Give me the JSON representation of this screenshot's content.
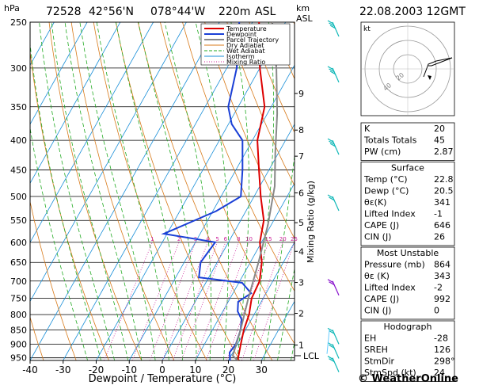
{
  "header": {
    "station": "72528",
    "lat": "42°56'N",
    "lon": "078°44'W",
    "elevation": "220m",
    "asl": "ASL",
    "datetime": "22.08.2003 12GMT",
    "hpa_label": "hPa",
    "km_label": "km",
    "km_asl_label": "ASL"
  },
  "chart_data": {
    "type": "line",
    "title": "",
    "xlabel": "Dewpoint / Temperature (°C)",
    "ylabel": "hPa",
    "right_axis_label": "Mixing Ratio (g/kg)",
    "xlim": [
      -40,
      40
    ],
    "ylim": [
      960,
      250
    ],
    "pressure_ticks": [
      250,
      300,
      350,
      400,
      450,
      500,
      550,
      600,
      650,
      700,
      750,
      800,
      850,
      900,
      950
    ],
    "temp_ticks": [
      -40,
      -30,
      -20,
      -10,
      0,
      10,
      20,
      30
    ],
    "km_ticks": [
      {
        "label": "9",
        "p": 332
      },
      {
        "label": "8",
        "p": 384
      },
      {
        "label": "7",
        "p": 426
      },
      {
        "label": "6",
        "p": 493
      },
      {
        "label": "5",
        "p": 555
      },
      {
        "label": "4",
        "p": 622
      },
      {
        "label": "3",
        "p": 704
      },
      {
        "label": "2",
        "p": 796
      },
      {
        "label": "1",
        "p": 903
      }
    ],
    "lcl_label": "LCL",
    "lcl_p": 942,
    "mixing_ratio_labels": [
      "1",
      "2",
      "3",
      "4",
      "5",
      "6",
      "8",
      "10",
      "15",
      "20",
      "25"
    ],
    "legend": [
      "Temperature",
      "Dewpoint",
      "Parcel Trajectory",
      "Dry Adiabat",
      "Wet Adiabat",
      "Isotherm",
      "Mixing Ratio"
    ],
    "series": [
      {
        "name": "Temperature",
        "color": "#dd0000",
        "points": [
          [
            22.8,
            960
          ],
          [
            21,
            900
          ],
          [
            19.5,
            850
          ],
          [
            18.5,
            800
          ],
          [
            16.5,
            750
          ],
          [
            16,
            700
          ],
          [
            13.5,
            650
          ],
          [
            9.5,
            600
          ],
          [
            7,
            550
          ],
          [
            2,
            500
          ],
          [
            -3,
            450
          ],
          [
            -8.5,
            400
          ],
          [
            -12,
            350
          ],
          [
            -20,
            300
          ],
          [
            -28,
            250
          ]
        ]
      },
      {
        "name": "Dewpoint",
        "color": "#1a3fd6",
        "points": [
          [
            20.5,
            960
          ],
          [
            19,
            930
          ],
          [
            19.5,
            900
          ],
          [
            18.5,
            850
          ],
          [
            17,
            815
          ],
          [
            14.5,
            790
          ],
          [
            13,
            760
          ],
          [
            15.5,
            735
          ],
          [
            11,
            705
          ],
          [
            -3,
            690
          ],
          [
            -5,
            650
          ],
          [
            -4,
            600
          ],
          [
            -21,
            580
          ],
          [
            -9,
            530
          ],
          [
            -4,
            500
          ],
          [
            -8,
            450
          ],
          [
            -13,
            400
          ],
          [
            -19,
            375
          ],
          [
            -23,
            350
          ],
          [
            -27,
            300
          ],
          [
            -34,
            250
          ]
        ]
      },
      {
        "name": "Parcel Trajectory",
        "color": "#888888",
        "points": [
          [
            22.8,
            960
          ],
          [
            20.5,
            942
          ],
          [
            18.5,
            850
          ],
          [
            15.5,
            750
          ],
          [
            12.5,
            650
          ],
          [
            9,
            560
          ],
          [
            4.5,
            480
          ],
          [
            -1,
            420
          ],
          [
            -7,
            360
          ],
          [
            -15,
            300
          ],
          [
            -24,
            250
          ]
        ]
      }
    ]
  },
  "hodograph": {
    "unit_label": "kt",
    "ring_labels": [
      "20",
      "40"
    ]
  },
  "indices": [
    {
      "label": "K",
      "value": "20"
    },
    {
      "label": "Totals Totals",
      "value": "45"
    },
    {
      "label": "PW (cm)",
      "value": "2.87"
    }
  ],
  "surface": {
    "title": "Surface",
    "rows": [
      {
        "label": "Temp (°C)",
        "value": "22.8"
      },
      {
        "label": "Dewp (°C)",
        "value": "20.5"
      },
      {
        "label": "θε(K)",
        "value": "341"
      },
      {
        "label": "Lifted Index",
        "value": "-1"
      },
      {
        "label": "CAPE (J)",
        "value": "646"
      },
      {
        "label": "CIN (J)",
        "value": "26"
      }
    ]
  },
  "most_unstable": {
    "title": "Most Unstable",
    "rows": [
      {
        "label": "Pressure (mb)",
        "value": "864"
      },
      {
        "label": "θε (K)",
        "value": "343"
      },
      {
        "label": "Lifted Index",
        "value": "-2"
      },
      {
        "label": "CAPE (J)",
        "value": "992"
      },
      {
        "label": "CIN (J)",
        "value": "0"
      }
    ]
  },
  "hodograph_table": {
    "title": "Hodograph",
    "rows": [
      {
        "label": "EH",
        "value": "-28"
      },
      {
        "label": "SREH",
        "value": "126"
      },
      {
        "label": "StmDir",
        "value": "298°"
      },
      {
        "label": "StmSpd (kt)",
        "value": "24"
      }
    ]
  },
  "credit": "© WeatherOnline",
  "colors": {
    "temperature": "#dd0000",
    "dewpoint": "#1a3fd6",
    "parcel": "#888888",
    "dry_adiabat": "#d87a1a",
    "wet_adiabat": "#22aa22",
    "isotherm": "#1a8fd8",
    "mixing_ratio": "#cc2299",
    "wind_barb": "#11b8b8"
  }
}
